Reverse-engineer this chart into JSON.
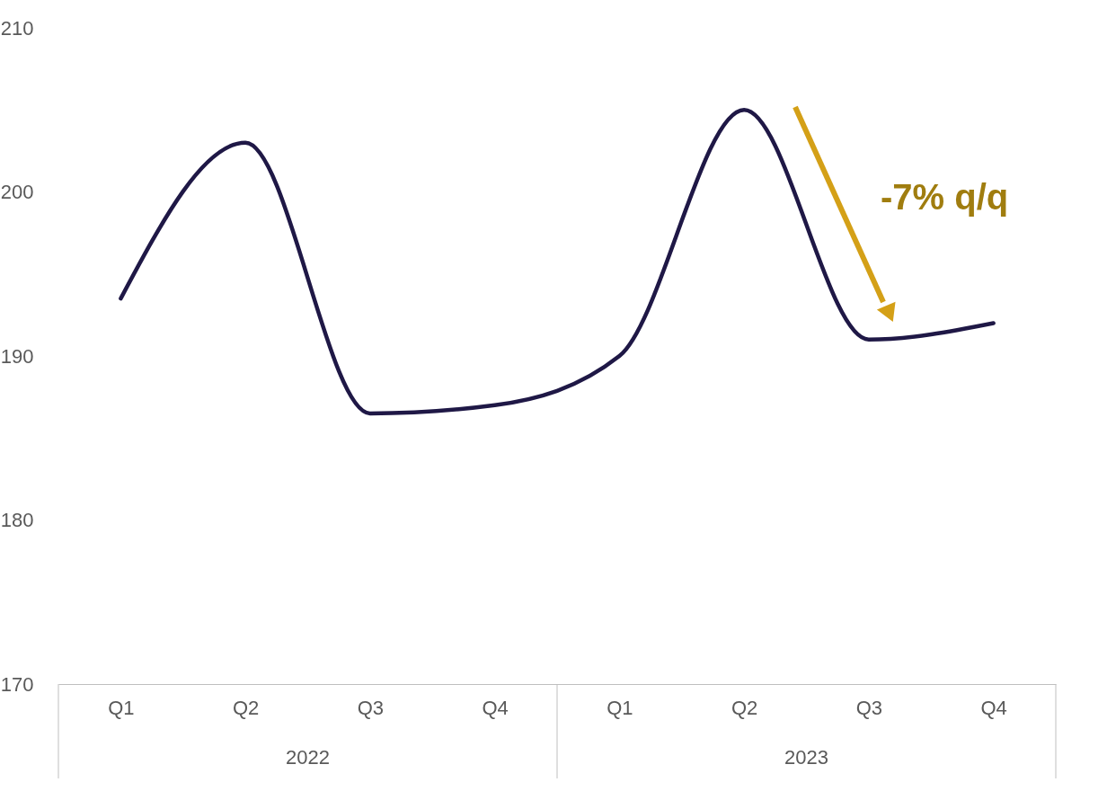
{
  "chart_data": {
    "type": "line",
    "categories": [
      "Q1",
      "Q2",
      "Q3",
      "Q4",
      "Q1",
      "Q2",
      "Q3",
      "Q4"
    ],
    "series": [
      {
        "color": "#1f1846",
        "values": [
          193.5,
          203,
          186.5,
          187,
          190,
          205,
          191,
          192
        ]
      }
    ],
    "ylim": [
      170,
      210
    ],
    "yticks": [
      170,
      180,
      190,
      200,
      210
    ],
    "grid": false,
    "marker": "none",
    "annotations": [
      "2022",
      "2023",
      "-7% q/q"
    ]
  }
}
